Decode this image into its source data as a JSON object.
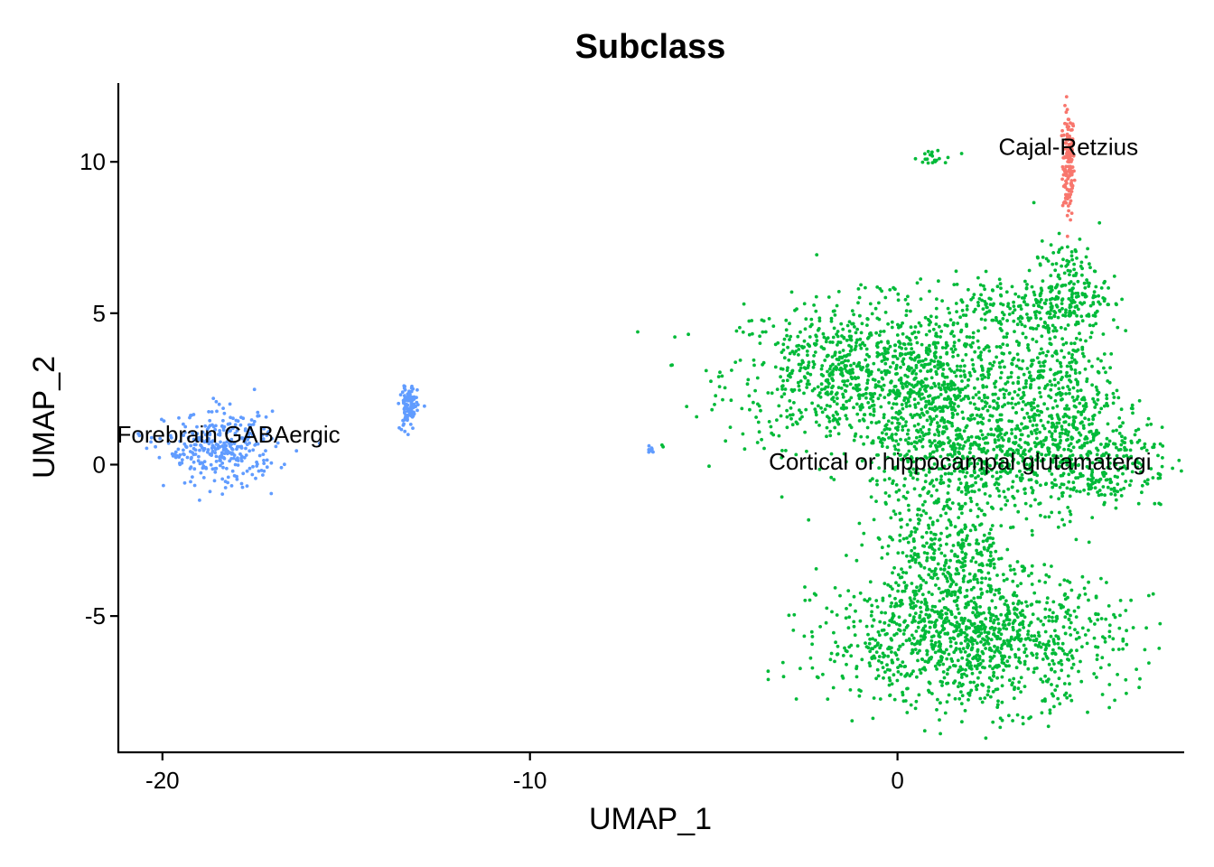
{
  "chart_data": {
    "type": "scatter",
    "title": "Subclass",
    "xlabel": "UMAP_1",
    "ylabel": "UMAP_2",
    "xlim": [
      -21.2,
      7.8
    ],
    "ylim": [
      -9.5,
      12.6
    ],
    "xticks": [
      -20,
      -10,
      0
    ],
    "yticks": [
      -5,
      0,
      5,
      10
    ],
    "grid": false,
    "legend": "none",
    "series": [
      {
        "color": "#F8766D",
        "clusters": [
          {
            "cx": 4.65,
            "cy": 9.9,
            "sx": 0.08,
            "sy": 0.9,
            "n": 150
          }
        ]
      },
      {
        "color": "#00BA38",
        "clusters": [
          {
            "cx": -1.5,
            "cy": 3.0,
            "sx": 1.6,
            "sy": 1.2,
            "n": 650
          },
          {
            "cx": 1.2,
            "cy": 2.6,
            "sx": 1.4,
            "sy": 1.3,
            "n": 650
          },
          {
            "cx": 4.3,
            "cy": 2.6,
            "sx": 0.8,
            "sy": 1.8,
            "n": 420
          },
          {
            "cx": 2.8,
            "cy": 5.3,
            "sx": 1.2,
            "sy": 0.35,
            "n": 130
          },
          {
            "cx": 4.7,
            "cy": 5.8,
            "sx": 0.5,
            "sy": 0.8,
            "n": 160
          },
          {
            "cx": 5.1,
            "cy": 0.2,
            "sx": 1.2,
            "sy": 0.9,
            "n": 380
          },
          {
            "cx": 1.7,
            "cy": 0.3,
            "sx": 1.2,
            "sy": 0.9,
            "n": 360
          },
          {
            "cx": 1.4,
            "cy": -2.8,
            "sx": 1.0,
            "sy": 1.2,
            "n": 420
          },
          {
            "cx": 2.0,
            "cy": -5.8,
            "sx": 2.0,
            "sy": 1.1,
            "n": 1150
          },
          {
            "cx": 1.0,
            "cy": 10.1,
            "sx": 0.3,
            "sy": 0.1,
            "n": 22
          },
          {
            "cx": -6.4,
            "cy": 0.6,
            "sx": 0.05,
            "sy": 0.04,
            "n": 2
          }
        ]
      },
      {
        "color": "#619CFF",
        "clusters": [
          {
            "cx": -18.4,
            "cy": 0.5,
            "sx": 0.75,
            "sy": 0.6,
            "n": 330
          },
          {
            "cx": -13.3,
            "cy": 1.9,
            "sx": 0.12,
            "sy": 0.4,
            "n": 110
          },
          {
            "cx": -6.7,
            "cy": 0.5,
            "sx": 0.08,
            "sy": 0.05,
            "n": 10
          }
        ]
      }
    ],
    "annotations": [
      {
        "text": "Cajal-Retzius",
        "x": 4.65,
        "y": 10.5
      },
      {
        "text": "Forebrain GABAergic",
        "x": -18.2,
        "y": 1.0
      },
      {
        "text": "Cortical or hippocampal glutamatergi",
        "x": 1.7,
        "y": 0.1
      }
    ]
  }
}
